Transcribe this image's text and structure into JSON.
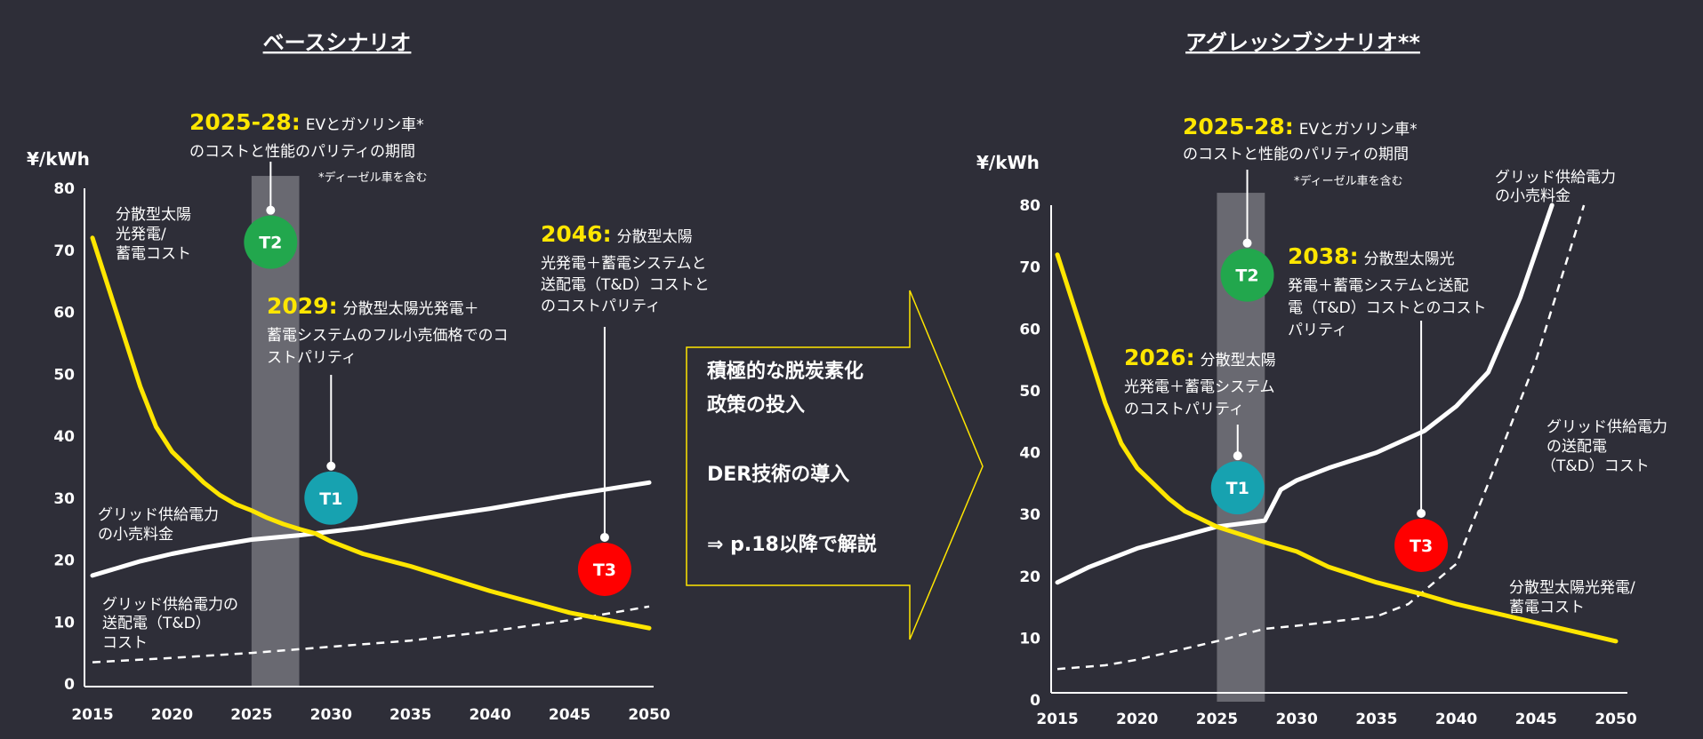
{
  "colors": {
    "background": "#2e2e38",
    "accent": "#ffe600",
    "t1": "#17a2b0",
    "t2": "#22a74d",
    "t3": "#ff0000",
    "band": "#9a9aa0"
  },
  "arrow": {
    "lines": [
      "積極的な脱炭素化",
      "政策の投入",
      "DER技術の導入",
      "⇒ p.18以降で解説"
    ]
  },
  "chart_data": [
    {
      "type": "line",
      "title": "ベースシナリオ",
      "ylabel": "¥/kWh",
      "xlabel": "",
      "xlim": [
        2015,
        2050
      ],
      "ylim": [
        0,
        80
      ],
      "xticks": [
        "2015",
        "2020",
        "2025",
        "2030",
        "2035",
        "2040",
        "2045",
        "2050"
      ],
      "yticks": [
        "0",
        "10",
        "20",
        "30",
        "40",
        "50",
        "60",
        "70",
        "80"
      ],
      "band": {
        "from": 2025,
        "to": 2028
      },
      "series": [
        {
          "name": "分散型太陽光発電/蓄電コスト",
          "style": "solid-yellow",
          "x": [
            2015,
            2016,
            2017,
            2018,
            2019,
            2020,
            2021,
            2022,
            2023,
            2024,
            2025,
            2026,
            2027,
            2028,
            2029,
            2030,
            2032,
            2035,
            2040,
            2045,
            2050
          ],
          "y": [
            72,
            64,
            56,
            48,
            41.5,
            37.5,
            35,
            32.5,
            30.5,
            29,
            28,
            26.8,
            25.8,
            25,
            24.3,
            23,
            21,
            19,
            15,
            11.5,
            9
          ]
        },
        {
          "name": "グリッド供給電力の小売料金",
          "style": "solid-white",
          "x": [
            2015,
            2018,
            2020,
            2022,
            2025,
            2028,
            2030,
            2032,
            2035,
            2040,
            2045,
            2050
          ],
          "y": [
            17.5,
            19.8,
            21,
            22,
            23.3,
            24,
            24.6,
            25.2,
            26.4,
            28.3,
            30.5,
            32.5
          ]
        },
        {
          "name": "グリッド供給電力の送配電（T&D）コスト",
          "style": "dashed-white",
          "x": [
            2015,
            2020,
            2025,
            2030,
            2035,
            2040,
            2045,
            2050
          ],
          "y": [
            3.5,
            4.2,
            5,
            6,
            7,
            8.5,
            10.3,
            12.5
          ]
        }
      ],
      "markers": [
        {
          "label": "T2",
          "year": 2026.2,
          "value": 71.3,
          "color": "#22a74d"
        },
        {
          "label": "T1",
          "year": 2030,
          "value": 30,
          "color": "#17a2b0"
        },
        {
          "label": "T3",
          "year": 2047.2,
          "value": 18.5,
          "color": "#ff0000"
        }
      ],
      "annotations": {
        "a1_year": "2025-28:",
        "a1_head": "EVとガソリン車*",
        "a1_line2": "のコストと性能のパリティの期間",
        "a1_note": "*ディーゼル車を含む",
        "a2_year": "2029:",
        "a2_head": "分散型太陽光発電＋",
        "a2_line2": "蓄電システムのフル小売価格でのコ",
        "a2_line3": "ストパリティ",
        "a3_year": "2046:",
        "a3_head": "分散型太陽",
        "a3_line2": "光発電＋蓄電システムと",
        "a3_line3": "送配電（T&D）コストと",
        "a3_line4": "のコストパリティ",
        "solar_label": [
          "分散型太陽",
          "光発電/",
          "蓄電コスト"
        ],
        "retail_label": [
          "グリッド供給電力",
          "の小売料金"
        ],
        "td_label": [
          "グリッド供給電力の",
          "送配電（T&D）",
          "コスト"
        ]
      }
    },
    {
      "type": "line",
      "title": "アグレッシブシナリオ**",
      "ylabel": "¥/kWh",
      "xlabel": "",
      "xlim": [
        2015,
        2050
      ],
      "ylim": [
        0,
        80
      ],
      "xticks": [
        "2015",
        "2020",
        "2025",
        "2030",
        "2035",
        "2040",
        "2045",
        "2050"
      ],
      "yticks": [
        "0",
        "10",
        "20",
        "30",
        "40",
        "50",
        "60",
        "70",
        "80"
      ],
      "band": {
        "from": 2025,
        "to": 2028
      },
      "series": [
        {
          "name": "分散型太陽光発電/蓄電コスト",
          "style": "solid-yellow",
          "x": [
            2015,
            2016,
            2017,
            2018,
            2019,
            2020,
            2021,
            2022,
            2023,
            2025,
            2028,
            2030,
            2032,
            2035,
            2038,
            2040,
            2045,
            2050
          ],
          "y": [
            72,
            64,
            56,
            48,
            41.5,
            37.5,
            35,
            32.5,
            30.5,
            28,
            25.5,
            24,
            21.5,
            19,
            17,
            15.5,
            12.5,
            9.5
          ]
        },
        {
          "name": "グリッド供給電力の小売料金",
          "style": "solid-white",
          "x": [
            2015,
            2017,
            2020,
            2025,
            2028,
            2029,
            2030,
            2032,
            2035,
            2038,
            2040,
            2042,
            2044,
            2046
          ],
          "y": [
            19,
            21.5,
            24.5,
            28,
            29,
            34,
            35.5,
            37.5,
            40,
            43.5,
            47.5,
            53,
            65,
            80
          ]
        },
        {
          "name": "グリッド供給電力の送配電（T&D）コスト",
          "style": "dashed-white",
          "x": [
            2015,
            2018,
            2020,
            2025,
            2028,
            2030,
            2035,
            2037,
            2040,
            2042,
            2045,
            2048
          ],
          "y": [
            5,
            5.6,
            6.5,
            9.5,
            11.5,
            12,
            13.5,
            15.5,
            22,
            35,
            55,
            80
          ]
        }
      ],
      "markers": [
        {
          "label": "T2",
          "year": 2026.9,
          "value": 68.7,
          "color": "#22a74d"
        },
        {
          "label": "T1",
          "year": 2026.3,
          "value": 34.3,
          "color": "#17a2b0"
        },
        {
          "label": "T3",
          "year": 2037.8,
          "value": 25,
          "color": "#ff0000"
        }
      ],
      "annotations": {
        "a1_year": "2025-28:",
        "a1_head": "EVとガソリン車*",
        "a1_line2": "のコストと性能のパリティの期間",
        "a1_note": "*ディーゼル車を含む",
        "a2_year": "2026:",
        "a2_head": "分散型太陽",
        "a2_line2": "光発電＋蓄電システム",
        "a2_line3": "のコストパリティ",
        "a3_year": "2038:",
        "a3_head": "分散型太陽光",
        "a3_line2": "発電＋蓄電システムと送配",
        "a3_line3": "電（T&D）コストとのコスト",
        "a3_line4": "パリティ",
        "solar_label": [
          "分散型太陽光発電/",
          "蓄電コスト"
        ],
        "retail_label": [
          "グリッド供給電力",
          "の小売料金"
        ],
        "td_label": [
          "グリッド供給電力",
          "の送配電",
          "（T&D）コスト"
        ]
      }
    }
  ]
}
